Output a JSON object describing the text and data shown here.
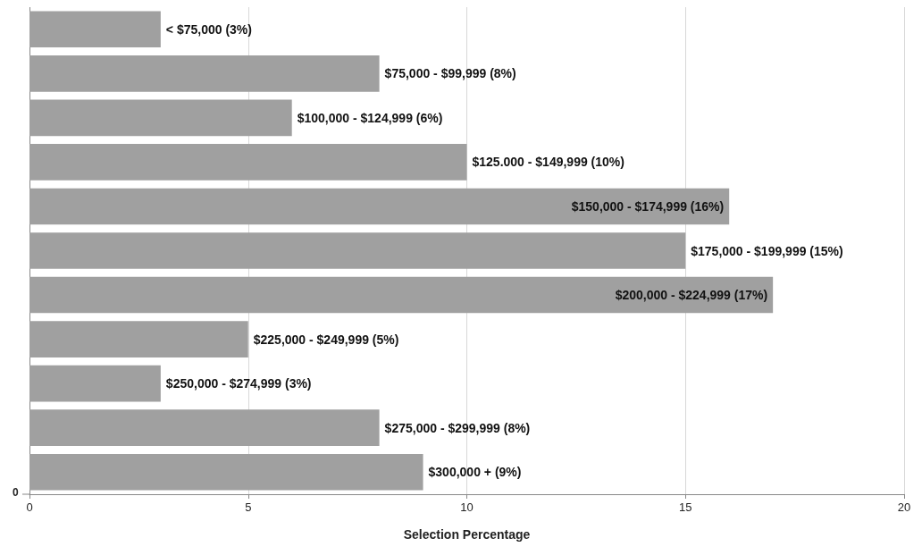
{
  "chart_data": {
    "type": "bar",
    "orientation": "horizontal",
    "xlabel": "Selection Percentage",
    "categories": [
      null,
      null,
      null,
      null,
      null,
      null,
      null,
      null,
      null,
      null,
      null
    ],
    "values": [
      3,
      8,
      6,
      10,
      16,
      15,
      17,
      5,
      3,
      8,
      9
    ],
    "value_labels": [
      "< $75,000 (3%)",
      "$75,000 - $99,999 (8%)",
      "$100,000 - $124,999 (6%)",
      "$125.000 - $149,999 (10%)",
      "$150,000 - $174,999 (16%)",
      "$175,000 - $199,999 (15%)",
      "$200,000 - $224,999 (17%)",
      "$225,000 - $249,999 (5%)",
      "$250,000 - $274,999 (3%)",
      "$275,000 - $299,999 (8%)",
      "$300,000 + (9%)"
    ],
    "color": "#a0a0a0",
    "xlim": [
      0,
      20
    ],
    "xticks": [
      0,
      5,
      10,
      15,
      20
    ],
    "grid": "x",
    "annotations": [
      "0"
    ]
  }
}
